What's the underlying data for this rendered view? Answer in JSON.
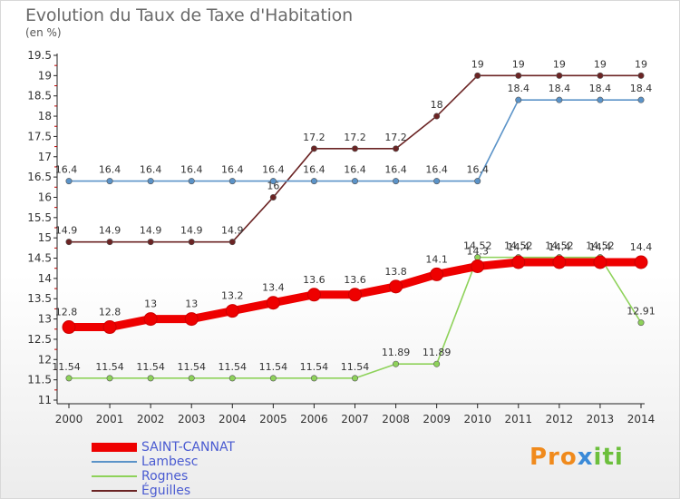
{
  "title": "Evolution du Taux de Taxe d'Habitation",
  "unit_label": "(en %)",
  "logo": {
    "parts": [
      "Pro",
      "x",
      "iti"
    ],
    "colors": [
      "#f08a1c",
      "#3a8ad8",
      "#6cbf3c"
    ]
  },
  "chart_data": {
    "type": "line",
    "title": "Evolution du Taux de Taxe d'Habitation",
    "ylabel": "(en %)",
    "xlabel": "",
    "ylim": [
      11,
      19.5
    ],
    "y_ticks": [
      "11",
      "11.5",
      "12",
      "12.5",
      "13",
      "13.5",
      "14",
      "14.5",
      "15",
      "15.5",
      "16",
      "16.5",
      "17",
      "17.5",
      "18",
      "18.5",
      "19",
      "19.5"
    ],
    "x": [
      "2000",
      "2001",
      "2002",
      "2003",
      "2004",
      "2005",
      "2006",
      "2007",
      "2008",
      "2009",
      "2010",
      "2011",
      "2012",
      "2013",
      "2014"
    ],
    "grid": false,
    "legend_position": "bottom-left",
    "series": [
      {
        "name": "SAINT-CANNAT",
        "color": "#ee0000",
        "values": [
          12.8,
          12.8,
          13,
          13,
          13.2,
          13.4,
          13.6,
          13.6,
          13.8,
          14.1,
          14.3,
          14.4,
          14.4,
          14.4,
          14.4
        ],
        "labels": [
          "12.8",
          "12.8",
          "13",
          "13",
          "13.2",
          "13.4",
          "13.6",
          "13.6",
          "13.8",
          "14.1",
          "14.3",
          "14.4",
          "14.4",
          "14.4",
          "14.4"
        ]
      },
      {
        "name": "Lambesc",
        "color": "#5b93c8",
        "values": [
          16.4,
          16.4,
          16.4,
          16.4,
          16.4,
          16.4,
          16.4,
          16.4,
          16.4,
          16.4,
          16.4,
          18.4,
          18.4,
          18.4,
          18.4
        ],
        "labels": [
          "16.4",
          "16.4",
          "16.4",
          "16.4",
          "16.4",
          "16.4",
          "16.4",
          "16.4",
          "16.4",
          "16.4",
          "16.4",
          "18.4",
          "18.4",
          "18.4",
          "18.4"
        ]
      },
      {
        "name": "Rognes",
        "color": "#8ed25a",
        "values": [
          11.54,
          11.54,
          11.54,
          11.54,
          11.54,
          11.54,
          11.54,
          11.54,
          11.89,
          11.89,
          14.52,
          14.52,
          14.52,
          14.52,
          12.91
        ],
        "labels": [
          "11.54",
          "11.54",
          "11.54",
          "11.54",
          "11.54",
          "11.54",
          "11.54",
          "11.54",
          "11.89",
          "11.89",
          "14.52",
          "14.52",
          "14.52",
          "14.52",
          "12.91"
        ]
      },
      {
        "name": "Éguilles",
        "color": "#6b2424",
        "values": [
          14.9,
          14.9,
          14.9,
          14.9,
          14.9,
          16,
          17.2,
          17.2,
          17.2,
          18,
          19,
          19,
          19,
          19,
          19
        ],
        "labels": [
          "14.9",
          "14.9",
          "14.9",
          "14.9",
          "14.9",
          "16",
          "17.2",
          "17.2",
          "17.2",
          "18",
          "19",
          "19",
          "19",
          "19",
          "19"
        ]
      }
    ]
  }
}
